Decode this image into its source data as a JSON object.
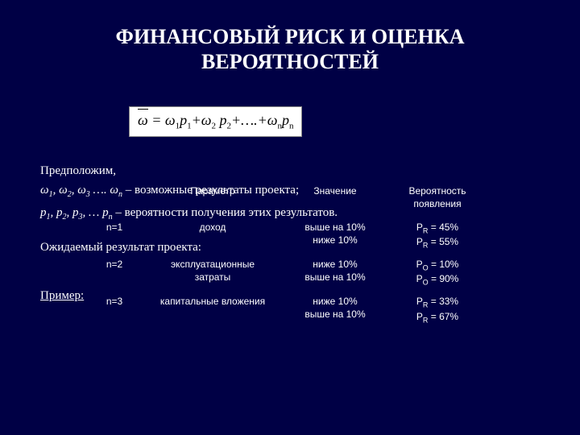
{
  "title_line1": "ФИНАНСОВЫЙ РИСК И ОЦЕНКА",
  "title_line2": "ВЕРОЯТНОСТЕЙ",
  "formula_html": "<span class='bar'>ω</span> = ω<span class='sub'>1</span>p<span class='sub'>1</span>+ω<span class='sub'>2</span> p<span class='sub'>2</span>+….+ω<span class='sub'>n</span>p<span class='sub'>n</span>",
  "text": {
    "assume": "Предположим,",
    "omega_line": "<span class='ital'>ω<span class='subw'>1</span>, ω<span class='subw'>2</span>, ω<span class='subw'>3</span> …. ω<span class='subw'>n</span></span> – возможные результаты проекта;",
    "p_line": "<span class='ital'>p<span class='subw'>1</span>, p<span class='subw'>2</span>, p<span class='subw'>3</span>, … p<span class='subw'>n</span></span> – вероятности получения этих результатов.",
    "expected": "Ожидаемый результат проекта:",
    "example": "Пример:"
  },
  "table": {
    "headers": {
      "n": "",
      "param": "Параметр",
      "value": "Значение",
      "prob": "Вероятность появления"
    },
    "rows": [
      {
        "n": "n=1",
        "param": "доход",
        "value_l1": "выше на 10%",
        "value_l2": "ниже 10%",
        "prob_l1": "P<span class='psub'>R</span> = 45%",
        "prob_l2": "P<span class='psub'>R</span> = 55%"
      },
      {
        "n": "n=2",
        "param": "эксплуатационные затраты",
        "value_l1": "ниже 10%",
        "value_l2": "выше на 10%",
        "prob_l1": "P<span class='psub'>O</span> = 10%",
        "prob_l2": "P<span class='psub'>O</span> = 90%"
      },
      {
        "n": "n=3",
        "param": "капитальные вложения",
        "value_l1": "ниже 10%",
        "value_l2": "выше на 10%",
        "prob_l1": "P<span class='psub'>R</span> = 33%",
        "prob_l2": "P<span class='psub'>R</span> = 67%"
      }
    ]
  },
  "colors": {
    "background": "#000045",
    "text": "#ffffff",
    "formula_bg": "#ffffff",
    "formula_text": "#000000"
  }
}
